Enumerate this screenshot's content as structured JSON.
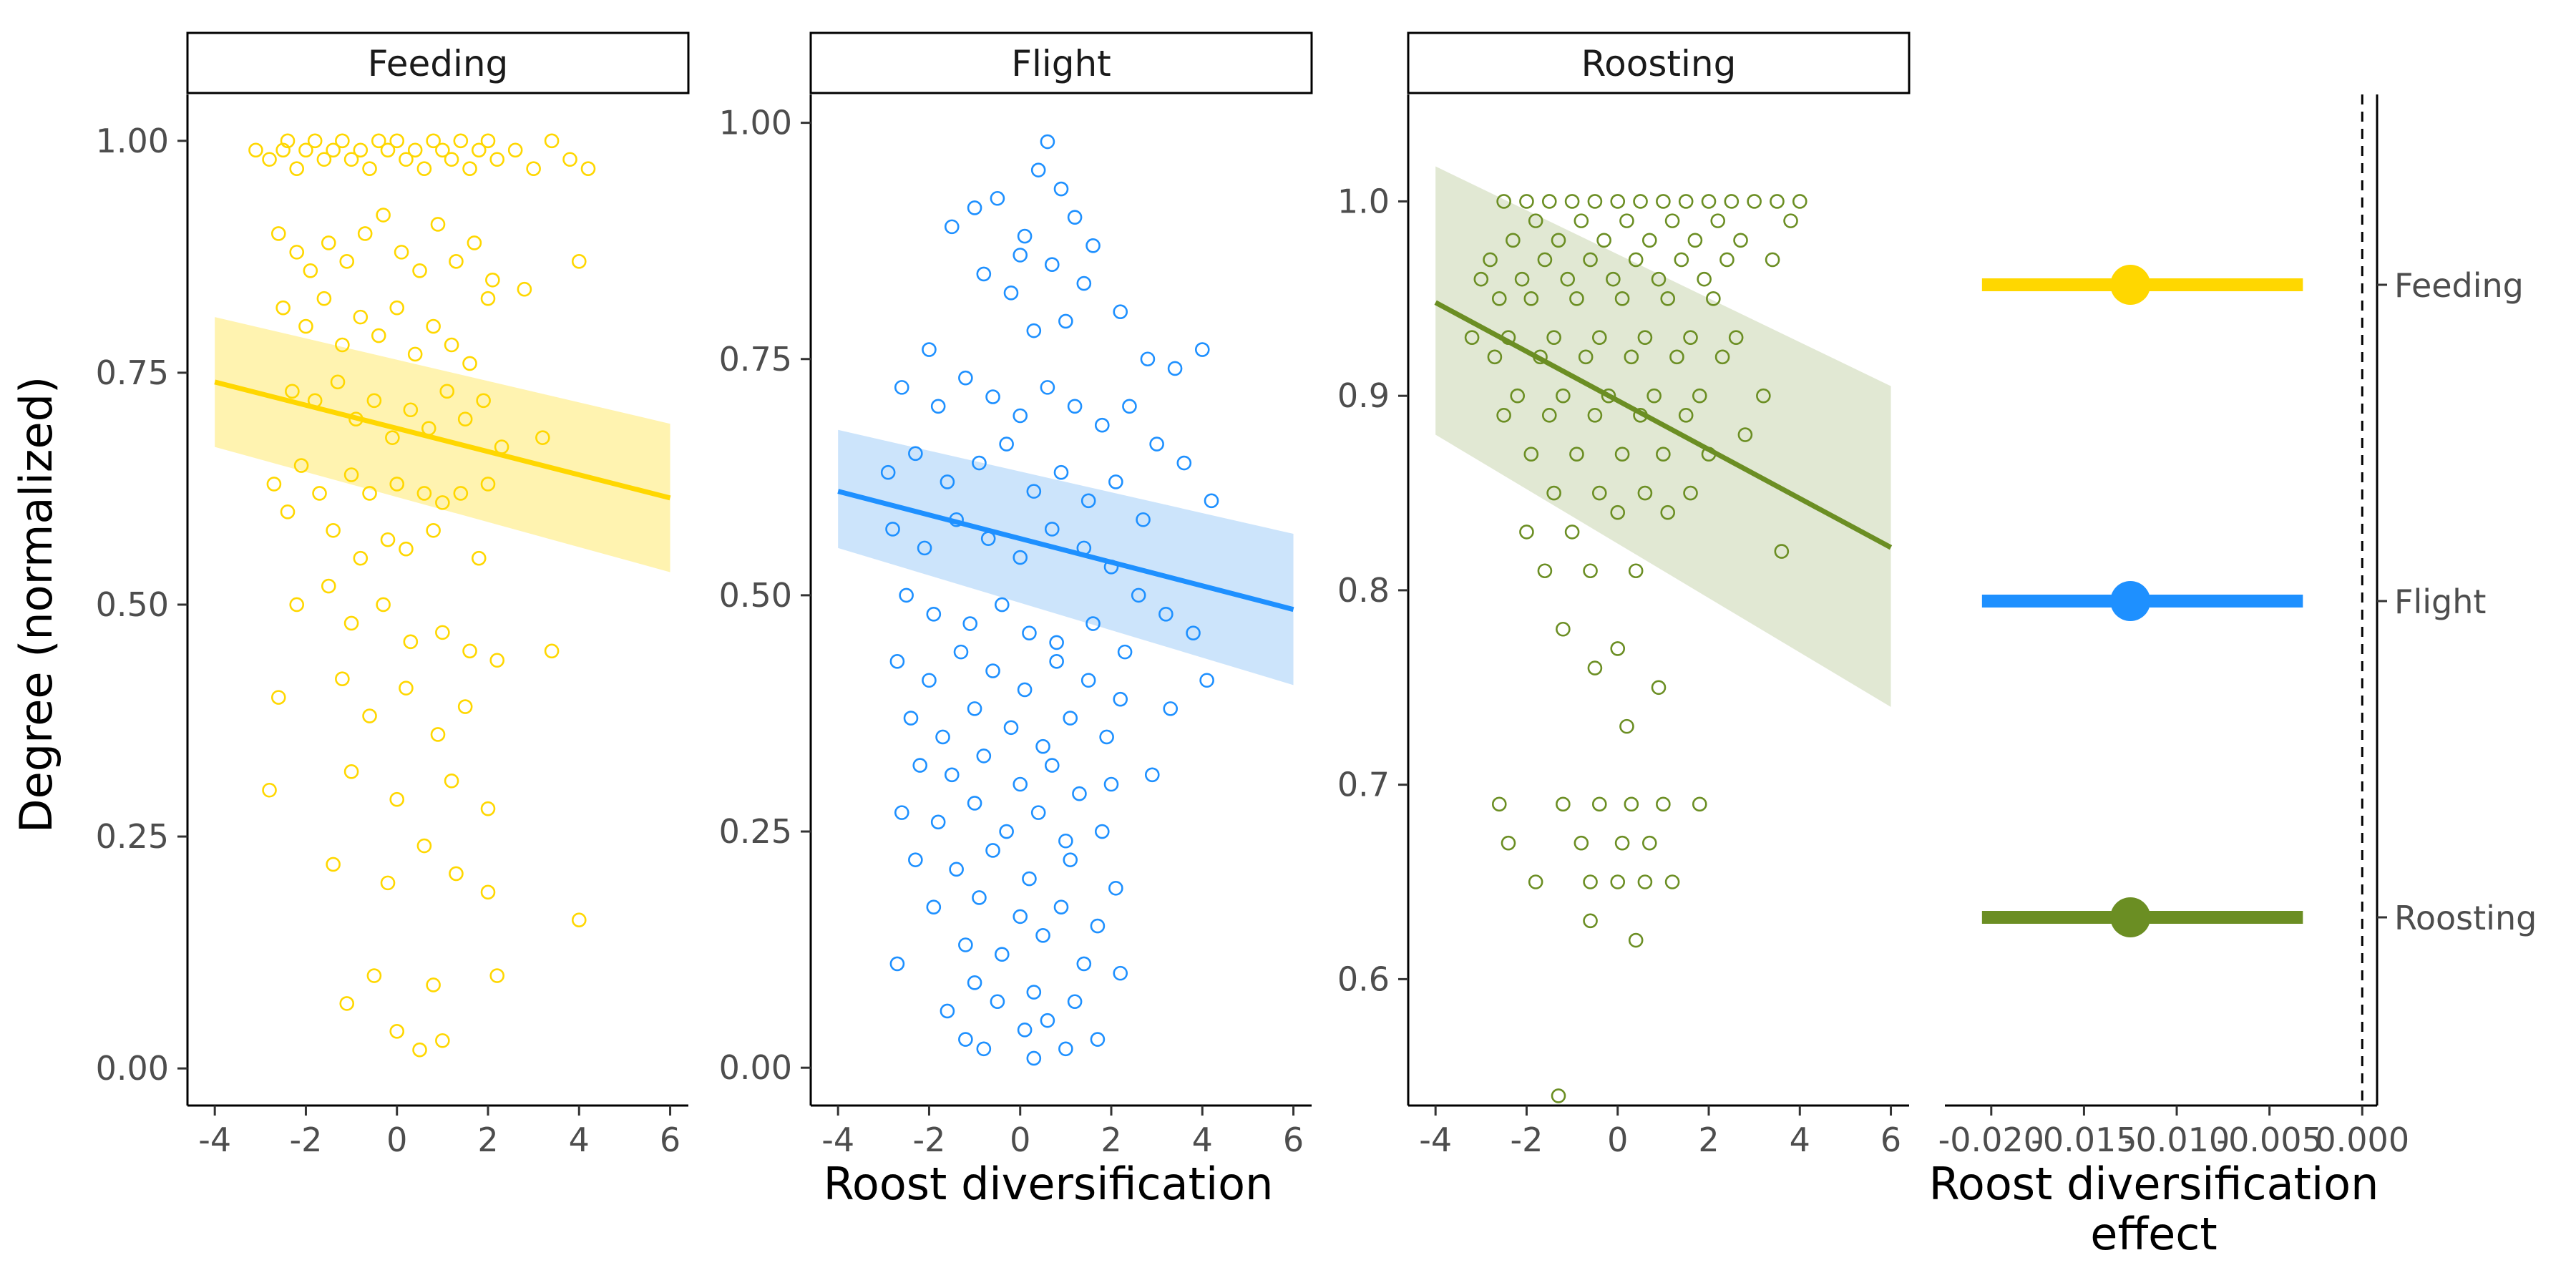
{
  "y_axis_title": "Degree (normalized)",
  "chart_data": [
    {
      "type": "scatter",
      "panel": "Feeding",
      "color": "#FFD700",
      "band_color": "#FFF3B0",
      "xlim": [
        -4.6,
        6.4
      ],
      "ylim": [
        -0.04,
        1.05
      ],
      "xticks": [
        -4,
        -2,
        0,
        2,
        4,
        6
      ],
      "xtick_labels": [
        "-4",
        "-2",
        "0",
        "2",
        "4",
        "6"
      ],
      "yticks": [
        0,
        0.25,
        0.5,
        0.75,
        1.0
      ],
      "ytick_labels": [
        "0.00",
        "0.25",
        "0.50",
        "0.75",
        "1.00"
      ],
      "xlabel": "",
      "fit": {
        "x": [
          -4,
          6
        ],
        "y": [
          0.74,
          0.615
        ],
        "ci_low": [
          0.67,
          0.535
        ],
        "ci_high": [
          0.81,
          0.695
        ]
      },
      "points": {
        "x": [
          -3.1,
          -2.8,
          -2.5,
          -2.4,
          -2.2,
          -2.0,
          -1.8,
          -1.6,
          -1.4,
          -1.2,
          -1.0,
          -0.8,
          -0.6,
          -0.4,
          -0.2,
          0.0,
          0.2,
          0.4,
          0.6,
          0.8,
          1.0,
          1.2,
          1.4,
          1.6,
          1.8,
          2.0,
          2.2,
          2.6,
          3.0,
          3.4,
          3.8,
          4.2,
          -2.6,
          -2.2,
          -1.9,
          -1.5,
          -1.1,
          -0.7,
          -0.3,
          0.1,
          0.5,
          0.9,
          1.3,
          1.7,
          2.1,
          -2.5,
          -2.0,
          -1.6,
          -1.2,
          -0.8,
          -0.4,
          0.0,
          0.4,
          0.8,
          1.2,
          1.6,
          2.0,
          2.8,
          -2.3,
          -1.8,
          -1.3,
          -0.9,
          -0.5,
          -0.1,
          0.3,
          0.7,
          1.1,
          1.5,
          1.9,
          2.3,
          3.2,
          4.0,
          -2.7,
          -2.1,
          -1.7,
          -1.0,
          -0.6,
          0.0,
          0.6,
          1.0,
          1.4,
          2.0,
          -2.4,
          -1.4,
          -0.8,
          -0.2,
          0.2,
          0.8,
          1.8,
          -2.2,
          -1.5,
          -1.0,
          -0.3,
          0.3,
          1.0,
          1.6,
          2.2,
          -2.6,
          -1.2,
          -0.6,
          0.2,
          0.9,
          1.5,
          3.4,
          -2.8,
          -1.0,
          0.0,
          1.2,
          2.0,
          -1.4,
          -0.2,
          0.6,
          1.3,
          2.0,
          4.0,
          -0.5,
          0.8,
          2.2,
          -1.1,
          0.0,
          1.0,
          0.5
        ],
        "y": [
          0.99,
          0.98,
          0.99,
          1.0,
          0.97,
          0.99,
          1.0,
          0.98,
          0.99,
          1.0,
          0.98,
          0.99,
          0.97,
          1.0,
          0.99,
          1.0,
          0.98,
          0.99,
          0.97,
          1.0,
          0.99,
          0.98,
          1.0,
          0.97,
          0.99,
          1.0,
          0.98,
          0.99,
          0.97,
          1.0,
          0.98,
          0.97,
          0.9,
          0.88,
          0.86,
          0.89,
          0.87,
          0.9,
          0.92,
          0.88,
          0.86,
          0.91,
          0.87,
          0.89,
          0.85,
          0.82,
          0.8,
          0.83,
          0.78,
          0.81,
          0.79,
          0.82,
          0.77,
          0.8,
          0.78,
          0.76,
          0.83,
          0.84,
          0.73,
          0.72,
          0.74,
          0.7,
          0.72,
          0.68,
          0.71,
          0.69,
          0.73,
          0.7,
          0.72,
          0.67,
          0.68,
          0.87,
          0.63,
          0.65,
          0.62,
          0.64,
          0.62,
          0.63,
          0.62,
          0.61,
          0.62,
          0.63,
          0.6,
          0.58,
          0.55,
          0.57,
          0.56,
          0.58,
          0.55,
          0.5,
          0.52,
          0.48,
          0.5,
          0.46,
          0.47,
          0.45,
          0.44,
          0.4,
          0.42,
          0.38,
          0.41,
          0.36,
          0.39,
          0.45,
          0.3,
          0.32,
          0.29,
          0.31,
          0.28,
          0.22,
          0.2,
          0.24,
          0.21,
          0.19,
          0.16,
          0.1,
          0.09,
          0.1,
          0.07,
          0.04,
          0.03,
          0.02
        ]
      }
    },
    {
      "type": "scatter",
      "panel": "Flight",
      "color": "#1E90FF",
      "band_color": "#CCE4FB",
      "xlim": [
        -4.6,
        6.4
      ],
      "ylim": [
        -0.04,
        1.03
      ],
      "xticks": [
        -4,
        -2,
        0,
        2,
        4,
        6
      ],
      "xtick_labels": [
        "-4",
        "-2",
        "0",
        "2",
        "4",
        "6"
      ],
      "yticks": [
        0,
        0.25,
        0.5,
        0.75,
        1.0
      ],
      "ytick_labels": [
        "0.00",
        "0.25",
        "0.50",
        "0.75",
        "1.00"
      ],
      "xlabel": "Roost diversification",
      "fit": {
        "x": [
          -4,
          6
        ],
        "y": [
          0.61,
          0.485
        ],
        "ci_low": [
          0.55,
          0.405
        ],
        "ci_high": [
          0.675,
          0.565
        ]
      },
      "points": {
        "x": [
          0.6,
          0.4,
          0.9,
          -0.5,
          1.2,
          -1.0,
          0.1,
          1.6,
          -1.5,
          2.2,
          0.0,
          -0.8,
          0.7,
          1.4,
          -0.2,
          2.8,
          -2.0,
          0.3,
          1.0,
          3.4,
          4.0,
          -2.6,
          -1.8,
          -1.2,
          -0.6,
          0.0,
          0.6,
          1.2,
          1.8,
          2.4,
          3.0,
          3.6,
          4.2,
          -2.9,
          -2.3,
          -1.6,
          -0.9,
          -0.3,
          0.3,
          0.9,
          1.5,
          2.1,
          2.7,
          -2.8,
          -2.1,
          -1.4,
          -0.7,
          0.0,
          0.7,
          1.4,
          2.0,
          2.6,
          3.2,
          3.8,
          -2.5,
          -1.9,
          -1.1,
          -0.4,
          0.2,
          0.8,
          1.6,
          2.3,
          -2.7,
          -2.0,
          -1.3,
          -0.6,
          0.1,
          0.8,
          1.5,
          2.2,
          3.3,
          4.1,
          -2.4,
          -1.7,
          -1.0,
          -0.2,
          0.5,
          1.1,
          1.9,
          -2.2,
          -1.5,
          -0.8,
          0.0,
          0.7,
          1.3,
          2.0,
          2.9,
          -2.6,
          -1.8,
          -1.0,
          -0.3,
          0.4,
          1.0,
          1.8,
          -2.3,
          -1.4,
          -0.6,
          0.2,
          1.1,
          2.1,
          -1.9,
          -0.9,
          0.0,
          0.9,
          1.7,
          -1.2,
          -0.4,
          0.5,
          1.4,
          2.2,
          -2.7,
          -1.0,
          0.3,
          1.2,
          -1.6,
          -0.5,
          0.6,
          -1.2,
          0.1,
          1.0,
          1.7,
          -0.8,
          0.3
        ],
        "y": [
          0.98,
          0.95,
          0.93,
          0.92,
          0.9,
          0.91,
          0.88,
          0.87,
          0.89,
          0.8,
          0.86,
          0.84,
          0.85,
          0.83,
          0.82,
          0.75,
          0.76,
          0.78,
          0.79,
          0.74,
          0.76,
          0.72,
          0.7,
          0.73,
          0.71,
          0.69,
          0.72,
          0.7,
          0.68,
          0.7,
          0.66,
          0.64,
          0.6,
          0.63,
          0.65,
          0.62,
          0.64,
          0.66,
          0.61,
          0.63,
          0.6,
          0.62,
          0.58,
          0.57,
          0.55,
          0.58,
          0.56,
          0.54,
          0.57,
          0.55,
          0.53,
          0.5,
          0.48,
          0.46,
          0.5,
          0.48,
          0.47,
          0.49,
          0.46,
          0.45,
          0.47,
          0.44,
          0.43,
          0.41,
          0.44,
          0.42,
          0.4,
          0.43,
          0.41,
          0.39,
          0.38,
          0.41,
          0.37,
          0.35,
          0.38,
          0.36,
          0.34,
          0.37,
          0.35,
          0.32,
          0.31,
          0.33,
          0.3,
          0.32,
          0.29,
          0.3,
          0.31,
          0.27,
          0.26,
          0.28,
          0.25,
          0.27,
          0.24,
          0.25,
          0.22,
          0.21,
          0.23,
          0.2,
          0.22,
          0.19,
          0.17,
          0.18,
          0.16,
          0.17,
          0.15,
          0.13,
          0.12,
          0.14,
          0.11,
          0.1,
          0.11,
          0.09,
          0.08,
          0.07,
          0.06,
          0.07,
          0.05,
          0.03,
          0.04,
          0.02,
          0.03,
          0.02,
          0.01
        ]
      }
    },
    {
      "type": "scatter",
      "panel": "Roosting",
      "color": "#6B8E23",
      "band_color": "#E1E8D3",
      "xlim": [
        -4.6,
        6.4
      ],
      "ylim": [
        0.535,
        1.055
      ],
      "xticks": [
        -4,
        -2,
        0,
        2,
        4,
        6
      ],
      "xtick_labels": [
        "-4",
        "-2",
        "0",
        "2",
        "4",
        "6"
      ],
      "yticks": [
        0.6,
        0.7,
        0.8,
        0.9,
        1.0
      ],
      "ytick_labels": [
        "0.6",
        "0.7",
        "0.8",
        "0.9",
        "1.0"
      ],
      "xlabel": "",
      "fit": {
        "x": [
          -4,
          6
        ],
        "y": [
          0.948,
          0.822
        ],
        "ci_low": [
          0.88,
          0.74
        ],
        "ci_high": [
          1.018,
          0.905
        ]
      },
      "points": {
        "x": [
          -2.5,
          -2.0,
          -1.5,
          -1.0,
          -0.5,
          0.0,
          0.5,
          1.0,
          1.5,
          2.0,
          2.5,
          3.0,
          3.5,
          4.0,
          -1.8,
          -0.8,
          0.2,
          1.2,
          2.2,
          3.8,
          -2.3,
          -1.3,
          -0.3,
          0.7,
          1.7,
          2.7,
          -2.8,
          -1.6,
          -0.6,
          0.4,
          1.4,
          2.4,
          3.4,
          -3.0,
          -2.1,
          -1.1,
          -0.1,
          0.9,
          1.9,
          -2.6,
          -1.9,
          -0.9,
          0.1,
          1.1,
          2.1,
          -3.2,
          -2.4,
          -1.4,
          -0.4,
          0.6,
          1.6,
          2.6,
          -2.7,
          -1.7,
          -0.7,
          0.3,
          1.3,
          2.3,
          -2.2,
          -1.2,
          -0.2,
          0.8,
          1.8,
          3.2,
          -2.5,
          -1.5,
          -0.5,
          0.5,
          1.5,
          2.8,
          -1.9,
          -0.9,
          0.1,
          1.0,
          2.0,
          3.6,
          -1.4,
          -0.4,
          0.6,
          1.6,
          -2.0,
          -1.0,
          0.0,
          1.1,
          -1.6,
          -0.6,
          0.4,
          -1.2,
          0.0,
          0.9,
          -0.5,
          0.2,
          -2.6,
          -1.2,
          -0.4,
          0.3,
          1.0,
          1.8,
          -2.4,
          -0.8,
          0.1,
          0.7,
          -1.8,
          -0.6,
          0.0,
          0.6,
          1.2,
          -0.6,
          0.4,
          -1.3
        ],
        "y": [
          1.0,
          1.0,
          1.0,
          1.0,
          1.0,
          1.0,
          1.0,
          1.0,
          1.0,
          1.0,
          1.0,
          1.0,
          1.0,
          1.0,
          0.99,
          0.99,
          0.99,
          0.99,
          0.99,
          0.99,
          0.98,
          0.98,
          0.98,
          0.98,
          0.98,
          0.98,
          0.97,
          0.97,
          0.97,
          0.97,
          0.97,
          0.97,
          0.97,
          0.96,
          0.96,
          0.96,
          0.96,
          0.96,
          0.96,
          0.95,
          0.95,
          0.95,
          0.95,
          0.95,
          0.95,
          0.93,
          0.93,
          0.93,
          0.93,
          0.93,
          0.93,
          0.93,
          0.92,
          0.92,
          0.92,
          0.92,
          0.92,
          0.92,
          0.9,
          0.9,
          0.9,
          0.9,
          0.9,
          0.9,
          0.89,
          0.89,
          0.89,
          0.89,
          0.89,
          0.88,
          0.87,
          0.87,
          0.87,
          0.87,
          0.87,
          0.82,
          0.85,
          0.85,
          0.85,
          0.85,
          0.83,
          0.83,
          0.84,
          0.84,
          0.81,
          0.81,
          0.81,
          0.78,
          0.77,
          0.75,
          0.76,
          0.73,
          0.69,
          0.69,
          0.69,
          0.69,
          0.69,
          0.69,
          0.67,
          0.67,
          0.67,
          0.67,
          0.65,
          0.65,
          0.65,
          0.65,
          0.65,
          0.63,
          0.62,
          0.54
        ]
      }
    },
    {
      "type": "forest",
      "panel": "effect",
      "xlim": [
        -0.0225,
        0.0008
      ],
      "xticks": [
        -0.02,
        -0.015,
        -0.01,
        -0.005,
        0.0
      ],
      "xtick_labels": [
        "-0.020",
        "-0.015",
        "-0.010",
        "-0.005",
        "0.000"
      ],
      "xlabel_line1": "Roost diversification",
      "xlabel_line2": "effect",
      "reference_line": 0.0,
      "categories": [
        "Feeding",
        "Flight",
        "Roosting"
      ],
      "estimates": [
        -0.0125,
        -0.0125,
        -0.0125
      ],
      "ci_low": [
        -0.0205,
        -0.0205,
        -0.0205
      ],
      "ci_high": [
        -0.0032,
        -0.0032,
        -0.0032
      ],
      "colors": [
        "#FFD700",
        "#1E90FF",
        "#6B8E23"
      ]
    }
  ]
}
